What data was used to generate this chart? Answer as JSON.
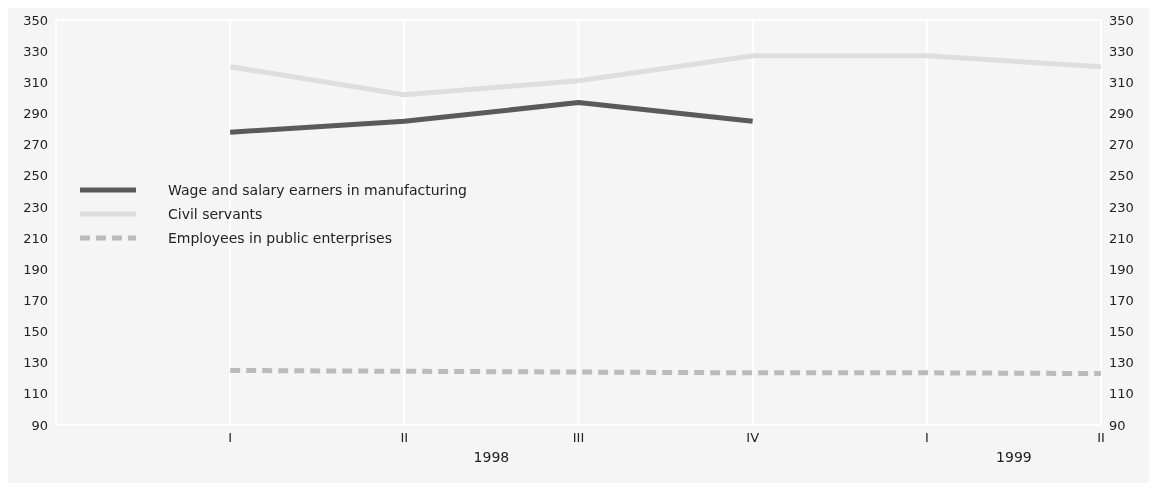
{
  "chart_data": {
    "type": "line",
    "categories": [
      null,
      "I",
      "II",
      "III",
      "IV",
      "I",
      "II"
    ],
    "series": [
      {
        "name": "Wage and salary earners in manufacturing",
        "color": "#5a5a5a",
        "values": [
          null,
          278,
          285,
          297,
          285,
          null,
          null
        ],
        "line_style": "solid"
      },
      {
        "name": "Civil servants",
        "color": "#dedede",
        "values": [
          null,
          320,
          302,
          311,
          327,
          327,
          320
        ],
        "line_style": "solid"
      },
      {
        "name": "Employees in public enterprises",
        "color": "#bbbbbb",
        "values": [
          null,
          125,
          124.5,
          124,
          123.5,
          123.5,
          123
        ],
        "line_style": "dashed"
      }
    ],
    "ylim": [
      90,
      350
    ],
    "yticks": [
      90,
      110,
      130,
      150,
      170,
      190,
      210,
      230,
      250,
      270,
      290,
      310,
      330,
      350
    ],
    "y2lim": [
      90,
      350
    ],
    "y2ticks": [
      90,
      110,
      130,
      150,
      170,
      190,
      210,
      230,
      250,
      270,
      290,
      310,
      330,
      350
    ],
    "annotations": [
      "1998",
      "1999"
    ],
    "grid": true,
    "legend": "left",
    "marker": "none"
  }
}
